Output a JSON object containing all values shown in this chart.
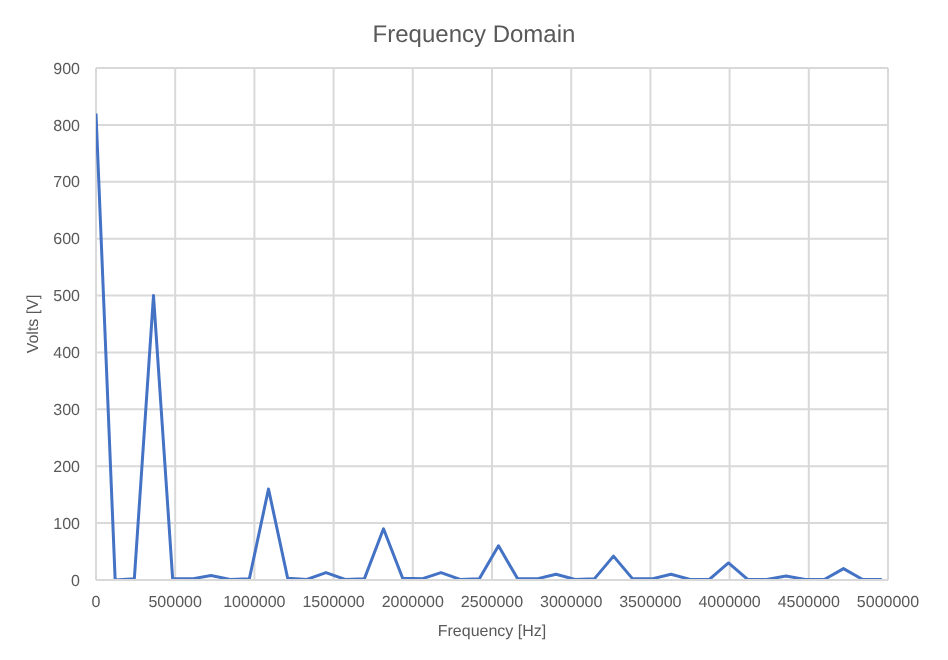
{
  "chart_data": {
    "type": "line",
    "title": "Frequency Domain",
    "xlabel": "Frequency [Hz]",
    "ylabel": "Volts [V]",
    "x": [
      0,
      121000,
      242000,
      363000,
      484000,
      605000,
      726000,
      847000,
      968000,
      1089000,
      1210000,
      1331000,
      1452000,
      1573000,
      1694000,
      1815000,
      1936000,
      2057000,
      2178000,
      2299000,
      2420000,
      2541000,
      2662000,
      2783000,
      2904000,
      3025000,
      3146000,
      3267000,
      3388000,
      3509000,
      3630000,
      3751000,
      3872000,
      3993000,
      4114000,
      4235000,
      4356000,
      4477000,
      4598000,
      4719000,
      4840000,
      4961000
    ],
    "series": [
      {
        "color": "#4472c4",
        "values": [
          820,
          0,
          2,
          500,
          2,
          2,
          8,
          1,
          2,
          160,
          3,
          1,
          13,
          1,
          2,
          90,
          3,
          2,
          13,
          1,
          2,
          60,
          2,
          2,
          10,
          1,
          2,
          42,
          2,
          2,
          10,
          1,
          1,
          30,
          1,
          1,
          7,
          1,
          1,
          20,
          1,
          1
        ]
      }
    ],
    "xlim": [
      0,
      5000000
    ],
    "xticks": [
      0,
      500000,
      1000000,
      1500000,
      2000000,
      2500000,
      3000000,
      3500000,
      4000000,
      4500000,
      5000000
    ],
    "ylim": [
      0,
      900
    ],
    "yticks": [
      0,
      100,
      200,
      300,
      400,
      500,
      600,
      700,
      800,
      900
    ],
    "grid": true,
    "legend": false,
    "marker": "none",
    "line_style": "solid"
  }
}
